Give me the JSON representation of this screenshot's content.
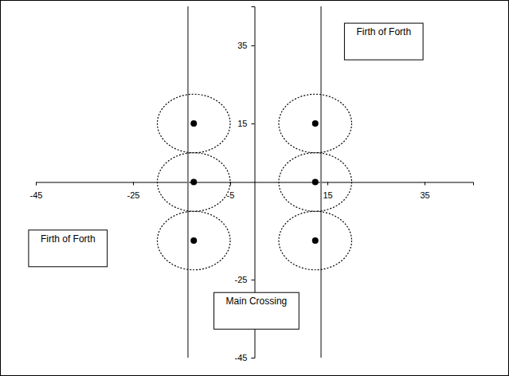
{
  "chart_data": {
    "type": "scatter",
    "x": [
      -12.5,
      -12.5,
      -12.5,
      12.5,
      12.5,
      12.5
    ],
    "values": [
      15,
      0,
      -15,
      15,
      0,
      -15
    ],
    "radius": [
      7.5,
      7.5,
      7.5,
      7.5,
      7.5,
      7.5
    ],
    "color": "#000000",
    "marker": "circle",
    "vertical_lines": [
      -13.7,
      13.7
    ],
    "xlim": [
      -45,
      45
    ],
    "ylim": [
      -45,
      45
    ],
    "xticks": [
      -45,
      -25,
      -5,
      15,
      35
    ],
    "yticks": [
      35,
      15,
      -25,
      -45
    ],
    "grid": false,
    "annotations": [
      {
        "text": "Firth of Forth",
        "x": 26.6,
        "y": 36
      },
      {
        "text": "Firth of Forth",
        "x": -38.4,
        "y": -17
      },
      {
        "text": "Main Crossing",
        "x": 0.4,
        "y": -33
      }
    ]
  }
}
